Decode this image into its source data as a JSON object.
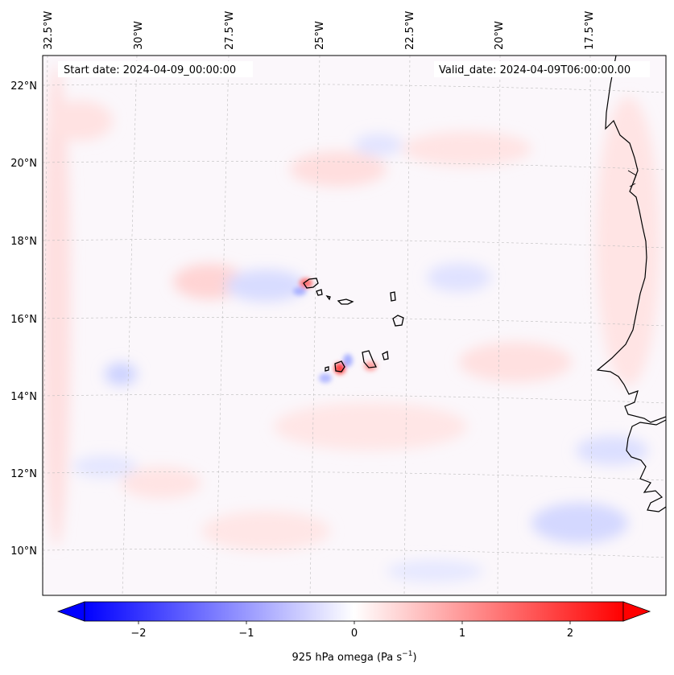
{
  "map": {
    "start_label": "Start date: 2024-04-09_00:00:00",
    "valid_label": "Valid_date: 2024-04-09T06:00:00.00",
    "lon_labels": [
      "32.5°W",
      "30°W",
      "27.5°W",
      "25°W",
      "22.5°W",
      "20°W",
      "17.5°W"
    ],
    "lat_labels": [
      "22°N",
      "20°N",
      "18°N",
      "16°N",
      "14°N",
      "12°N",
      "10°N"
    ],
    "field": "925 hPa omega",
    "field_units": "Pa s⁻¹",
    "extent": {
      "lon": [
        -32.7,
        -15.4
      ],
      "lat": [
        8.9,
        22.7
      ]
    },
    "colormap": "bwr",
    "coastline_color": "#000000",
    "gridline_color": "#bdbdbd"
  },
  "colorbar": {
    "label": "925 hPa omega (Pa s$^{-1}$)",
    "label_text": "925 hPa omega (Pa s",
    "label_sup": "−1",
    "label_close": ")",
    "ticks": [
      "−2",
      "−1",
      "0",
      "1",
      "2"
    ],
    "range": [
      -2.6,
      2.6
    ],
    "min_color": "#0000ff",
    "mid_color": "#ffffff",
    "max_color": "#ff0000"
  }
}
